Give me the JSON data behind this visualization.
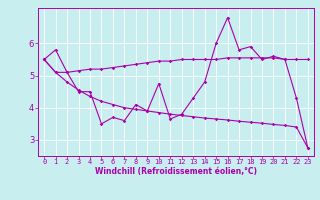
{
  "xlabel": "Windchill (Refroidissement éolien,°C)",
  "ylabel": "",
  "bg_color": "#c8eef0",
  "grid_color": "#ffffff",
  "line_color": "#aa00aa",
  "x": [
    0,
    1,
    2,
    3,
    4,
    5,
    6,
    7,
    8,
    9,
    10,
    11,
    12,
    13,
    14,
    15,
    16,
    17,
    18,
    19,
    20,
    21,
    22,
    23
  ],
  "line1": [
    5.5,
    5.8,
    5.1,
    4.5,
    4.5,
    3.5,
    3.7,
    3.6,
    4.1,
    3.9,
    4.75,
    3.65,
    3.8,
    4.3,
    4.8,
    6.0,
    6.8,
    5.8,
    5.9,
    5.5,
    5.6,
    5.5,
    4.3,
    2.75
  ],
  "line2": [
    5.5,
    5.1,
    5.1,
    5.15,
    5.2,
    5.2,
    5.25,
    5.3,
    5.35,
    5.4,
    5.45,
    5.45,
    5.5,
    5.5,
    5.5,
    5.5,
    5.55,
    5.55,
    5.55,
    5.55,
    5.55,
    5.5,
    5.5,
    5.5
  ],
  "line3": [
    5.5,
    5.1,
    4.8,
    4.55,
    4.35,
    4.2,
    4.1,
    4.0,
    3.95,
    3.9,
    3.85,
    3.8,
    3.76,
    3.72,
    3.68,
    3.65,
    3.62,
    3.58,
    3.55,
    3.52,
    3.48,
    3.45,
    3.4,
    2.75
  ],
  "yticks": [
    3,
    4,
    5,
    6
  ],
  "xtick_labels": [
    "0",
    "1",
    "2",
    "3",
    "4",
    "5",
    "6",
    "7",
    "8",
    "9",
    "10",
    "11",
    "12",
    "13",
    "14",
    "15",
    "16",
    "17",
    "18",
    "19",
    "20",
    "21",
    "22",
    "23"
  ],
  "xlim": [
    -0.5,
    23.5
  ],
  "ylim": [
    2.5,
    7.1
  ],
  "tick_fontsize": 5.0,
  "xlabel_fontsize": 5.5,
  "lw": 0.8,
  "ms": 1.8
}
